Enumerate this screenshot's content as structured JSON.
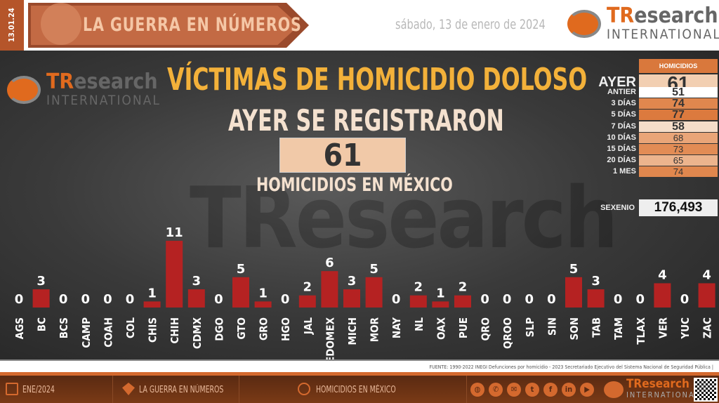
{
  "header": {
    "date_tab": "13.01.24",
    "banner_title": "LA GUERRA EN NÚMEROS",
    "date": "sábado, 13 de enero de 2024",
    "logo": {
      "tr": "TR",
      "rest": "esearch",
      "sub": "INTERNATIONAL"
    }
  },
  "main": {
    "headline": "VÍCTIMAS DE HOMICIDIO DOLOSO",
    "sub1": "AYER SE REGISTRARON",
    "big_number": "61",
    "sub2": "HOMICIDIOS EN MÉXICO",
    "watermark": "TResearch"
  },
  "table": {
    "header": "HOMICIDIOS",
    "rows": [
      {
        "label": "AYER",
        "value": "61",
        "color": "#f2cfb2"
      },
      {
        "label": "ANTIER",
        "value": "51",
        "color": "#ffffff"
      },
      {
        "label": "3 DÍAS",
        "value": "74",
        "color": "#e0874e"
      },
      {
        "label": "5 DÍAS",
        "value": "77",
        "color": "#dc7a3e"
      },
      {
        "label": "7 DÍAS",
        "value": "58",
        "color": "#f5ddc9"
      },
      {
        "label": "10 DÍAS",
        "value": "68",
        "color": "#e9a578"
      },
      {
        "label": "15 DÍAS",
        "value": "73",
        "color": "#e28c55"
      },
      {
        "label": "20 DÍAS",
        "value": "65",
        "color": "#ecb48d"
      },
      {
        "label": "1 MES",
        "value": "74",
        "color": "#e0874e"
      }
    ],
    "sexenio_label": "SEXENIO",
    "sexenio_value": "176,493"
  },
  "chart_data": {
    "type": "bar",
    "categories": [
      "AGS",
      "BC",
      "BCS",
      "CAMP",
      "COAH",
      "COL",
      "CHIS",
      "CHIH",
      "CDMX",
      "DGO",
      "GTO",
      "GRO",
      "HGO",
      "JAL",
      "EDOMEX",
      "MICH",
      "MOR",
      "NAY",
      "NL",
      "OAX",
      "PUE",
      "QRO",
      "QROO",
      "SLP",
      "SIN",
      "SON",
      "TAB",
      "TAM",
      "TLAX",
      "VER",
      "YUC",
      "ZAC"
    ],
    "values": [
      0,
      3,
      0,
      0,
      0,
      0,
      1,
      11,
      3,
      0,
      5,
      1,
      0,
      2,
      6,
      3,
      5,
      0,
      2,
      1,
      2,
      0,
      0,
      0,
      0,
      5,
      3,
      0,
      0,
      4,
      0,
      4
    ],
    "bar_color": "#b52222",
    "grid": false
  },
  "fuente": "FUENTE: 1990-2022 INEGI Defunciones por homicidio - 2023 Secretariado Ejecutivo del Sistema Nacional de Seguridad Pública |",
  "footer": {
    "date": "ENE/2024",
    "section": "LA GUERRA EN NÚMEROS",
    "topic": "HOMICIDIOS EN MÉXICO",
    "socials": [
      "globe-icon",
      "whatsapp-icon",
      "email-icon",
      "twitter-icon",
      "facebook-icon",
      "linkedin-icon",
      "youtube-icon"
    ]
  }
}
